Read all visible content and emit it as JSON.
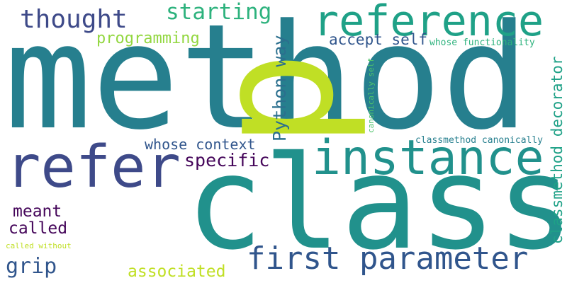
{
  "palette": {
    "background": "#ffffff",
    "dark_purple": "#45065a",
    "indigo": "#3e4a89",
    "slate_blue": "#30558c",
    "steel_blue": "#2b6f8e",
    "teal_blue": "#267f8e",
    "teal": "#21918c",
    "green_teal": "#1fa187",
    "sea_green": "#2db27d",
    "light_green": "#4ec36b",
    "yellow_green": "#93d741",
    "lime": "#c0df25"
  },
  "words": [
    {
      "id": "method",
      "text": "method"
    },
    {
      "id": "class",
      "text": "class"
    },
    {
      "id": "p",
      "text": "p"
    },
    {
      "id": "reference",
      "text": "reference"
    },
    {
      "id": "instance",
      "text": "instance"
    },
    {
      "id": "refer",
      "text": "refer"
    },
    {
      "id": "first-parameter",
      "text": "first parameter"
    },
    {
      "id": "thought",
      "text": "thought"
    },
    {
      "id": "starting",
      "text": "starting"
    },
    {
      "id": "programming",
      "text": "programming"
    },
    {
      "id": "accept-self",
      "text": "accept self"
    },
    {
      "id": "python-way",
      "text": "Python way"
    },
    {
      "id": "whose-functionality",
      "text": "whose functionality"
    },
    {
      "id": "canonically-self",
      "text": "canonically self"
    },
    {
      "id": "classmethod-canonically",
      "text": "classmethod canonically"
    },
    {
      "id": "classmethod-decorator",
      "text": "classmethod decorator"
    },
    {
      "id": "whose-context",
      "text": "whose context"
    },
    {
      "id": "specific",
      "text": "specific"
    },
    {
      "id": "meant",
      "text": "meant"
    },
    {
      "id": "called",
      "text": "called"
    },
    {
      "id": "called-without",
      "text": "called without"
    },
    {
      "id": "grip",
      "text": "grip"
    },
    {
      "id": "associated",
      "text": "associated"
    }
  ]
}
